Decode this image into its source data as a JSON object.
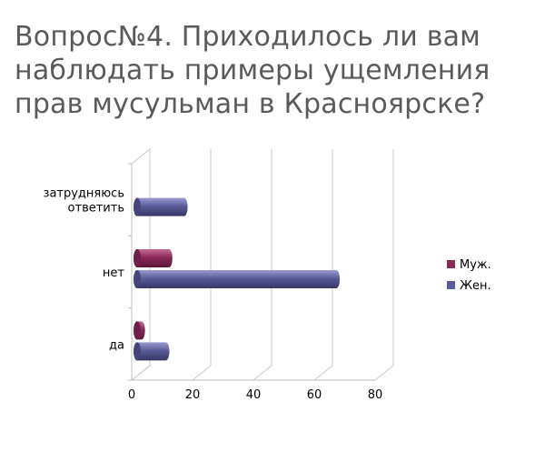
{
  "title": "Вопрос№4. Приходилось ли вам наблюдать примеры ущемления прав мусульман в Красноярске?",
  "chart_data": {
    "type": "bar",
    "orientation": "horizontal",
    "style": "3d-cylinder",
    "categories": [
      "да",
      "нет",
      "затрудняюсь ответить"
    ],
    "series": [
      {
        "name": "Муж.",
        "color": "#8b2a5a",
        "values": [
          2,
          11,
          null
        ]
      },
      {
        "name": "Жен.",
        "color": "#5b5b99",
        "values": [
          10,
          66,
          16
        ]
      }
    ],
    "xlim": [
      0,
      80
    ],
    "xticks": [
      0,
      20,
      40,
      60,
      80
    ],
    "grid": true,
    "legend": "right"
  }
}
